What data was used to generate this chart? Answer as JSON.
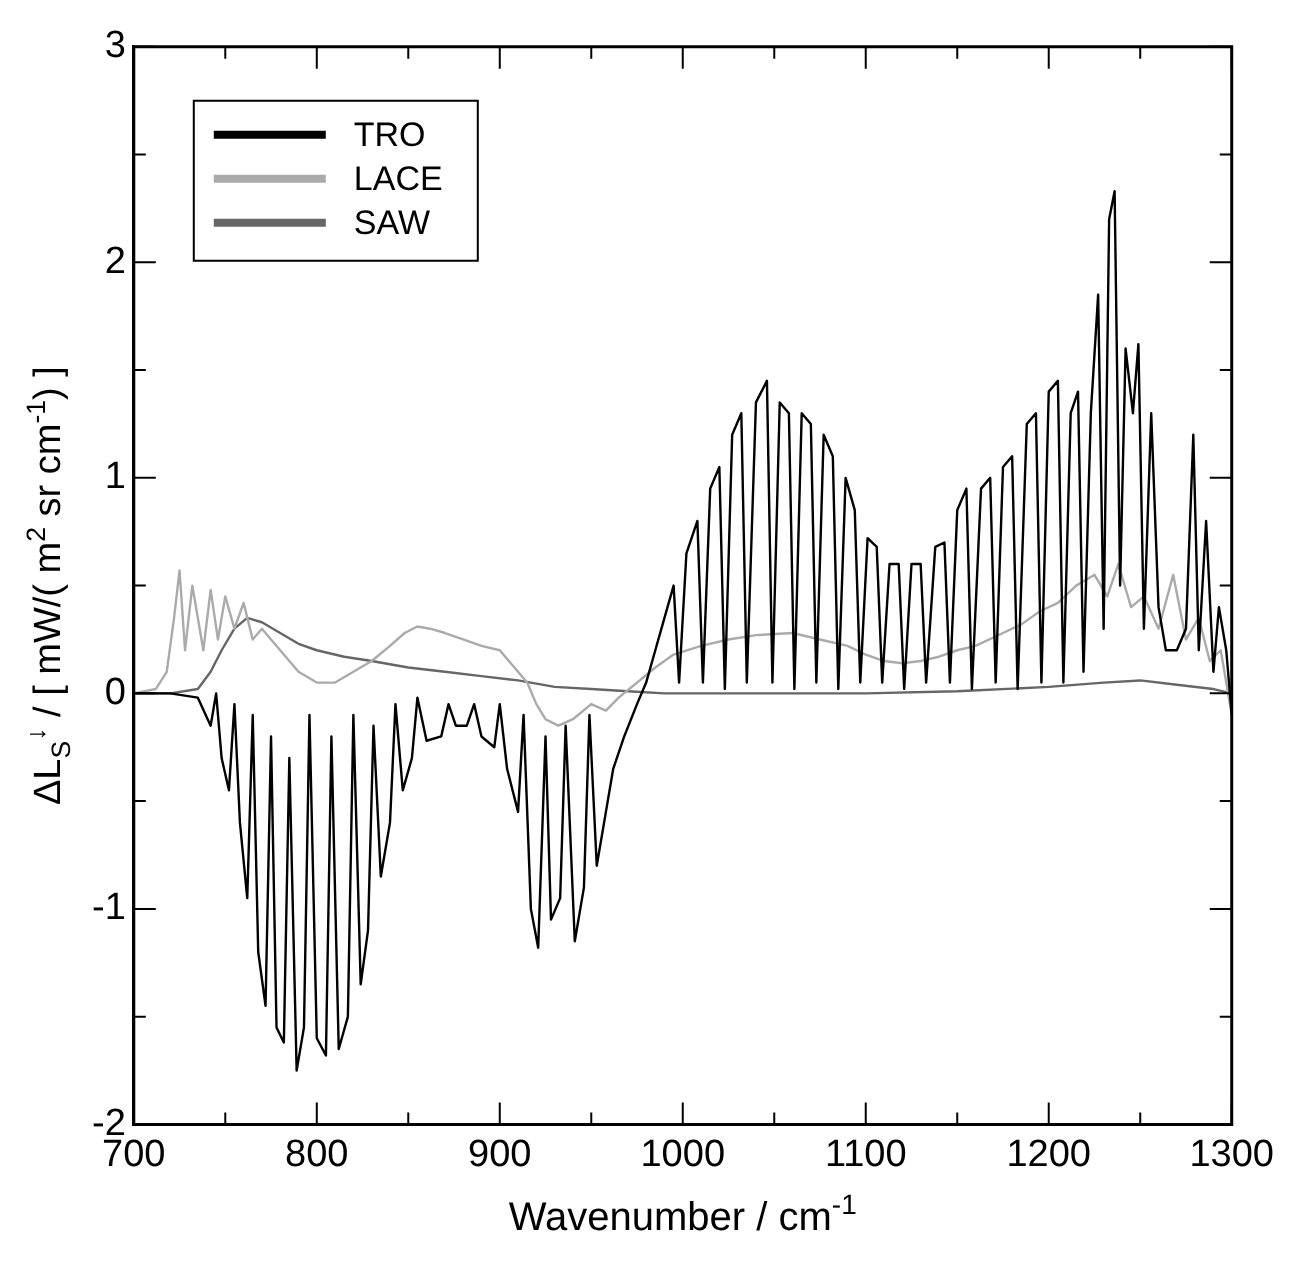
{
  "chart_data": {
    "type": "line",
    "xlabel": "Wavenumber / cm$^{-1}$",
    "ylabel": "ΔL$_{S}$$^{↓}$ / [ mW/( m$^{2}$ sr cm$^{-1}$) ]",
    "xlim": [
      700,
      1300
    ],
    "ylim": [
      -2,
      3
    ],
    "xticks": [
      700,
      {
        "value": 750,
        "label": null
      },
      800,
      {
        "value": 850,
        "label": null
      },
      900,
      {
        "value": 950,
        "label": null
      },
      1000,
      {
        "value": 1050,
        "label": null
      },
      1100,
      {
        "value": 1150,
        "label": null
      },
      1200,
      {
        "value": 1250,
        "label": null
      },
      1300
    ],
    "yticks": [
      -2,
      {
        "value": -1.5,
        "label": null
      },
      -1,
      {
        "value": -0.5,
        "label": null
      },
      0,
      {
        "value": 0.5,
        "label": null
      },
      1,
      {
        "value": 1.5,
        "label": null
      },
      2,
      {
        "value": 2.5,
        "label": null
      },
      3
    ],
    "grid": false,
    "legend": "top left",
    "marker": "none",
    "line_style": "solid",
    "series": [
      {
        "name": "TRO",
        "color": "#000000",
        "x": [
          700,
          720,
          735,
          742,
          745,
          748,
          752,
          755,
          758,
          762,
          765,
          768,
          772,
          775,
          778,
          782,
          785,
          789,
          793,
          796,
          800,
          805,
          808,
          812,
          817,
          820,
          824,
          828,
          831,
          835,
          840,
          843,
          847,
          852,
          855,
          860,
          868,
          872,
          876,
          882,
          886,
          890,
          897,
          900,
          904,
          910,
          913,
          917,
          921,
          925,
          928,
          933,
          936,
          941,
          946,
          949,
          953,
          958,
          962,
          968,
          975,
          980,
          985,
          990,
          995,
          998,
          1002,
          1008,
          1011,
          1015,
          1020,
          1023,
          1027,
          1032,
          1035,
          1040,
          1046,
          1049,
          1053,
          1058,
          1061,
          1065,
          1070,
          1073,
          1077,
          1082,
          1085,
          1089,
          1094,
          1097,
          1101,
          1106,
          1109,
          1113,
          1118,
          1121,
          1125,
          1130,
          1133,
          1138,
          1143,
          1146,
          1150,
          1155,
          1158,
          1163,
          1168,
          1171,
          1175,
          1180,
          1183,
          1188,
          1193,
          1196,
          1200,
          1205,
          1208,
          1212,
          1216,
          1219,
          1223,
          1227,
          1230,
          1233,
          1236,
          1239,
          1242,
          1246,
          1249,
          1252,
          1256,
          1260,
          1264,
          1270,
          1275,
          1279,
          1282,
          1286,
          1290,
          1293,
          1297,
          1300
        ],
        "values": [
          0,
          0,
          -0.02,
          -0.15,
          0,
          -0.3,
          -0.45,
          -0.05,
          -0.6,
          -0.95,
          -0.1,
          -1.2,
          -1.45,
          -0.2,
          -1.55,
          -1.62,
          -0.3,
          -1.75,
          -1.55,
          -0.1,
          -1.6,
          -1.68,
          -0.2,
          -1.65,
          -1.5,
          -0.1,
          -1.35,
          -1.1,
          -0.15,
          -0.85,
          -0.6,
          -0.05,
          -0.45,
          -0.3,
          -0.02,
          -0.22,
          -0.2,
          -0.05,
          -0.15,
          -0.15,
          -0.05,
          -0.2,
          -0.25,
          -0.05,
          -0.35,
          -0.55,
          -0.1,
          -1.0,
          -1.18,
          -0.2,
          -1.05,
          -0.95,
          -0.15,
          -1.15,
          -0.9,
          -0.1,
          -0.8,
          -0.55,
          -0.35,
          -0.2,
          -0.05,
          0.05,
          0.2,
          0.35,
          0.5,
          0.05,
          0.65,
          0.8,
          0.05,
          0.95,
          1.05,
          0.02,
          1.2,
          1.3,
          0.05,
          1.35,
          1.45,
          0.05,
          1.35,
          1.3,
          0.02,
          1.3,
          1.25,
          0.05,
          1.2,
          1.1,
          0.02,
          1.0,
          0.85,
          0.05,
          0.72,
          0.68,
          0.05,
          0.6,
          0.6,
          0.02,
          0.6,
          0.6,
          0.05,
          0.68,
          0.7,
          0.05,
          0.85,
          0.95,
          0.02,
          0.95,
          1.0,
          0.05,
          1.05,
          1.1,
          0.02,
          1.25,
          1.3,
          0.05,
          1.4,
          1.45,
          0.05,
          1.3,
          1.4,
          0.1,
          1.3,
          1.85,
          0.3,
          2.2,
          2.33,
          0.5,
          1.6,
          1.3,
          1.62,
          0.3,
          1.3,
          0.4,
          0.2,
          0.2,
          0.3,
          1.2,
          0.2,
          0.8,
          0.1,
          0.4,
          0.2,
          -0.1
        ]
      },
      {
        "name": "LACE",
        "color": "#aaaaaa",
        "x": [
          700,
          712,
          718,
          722,
          725,
          728,
          732,
          738,
          742,
          746,
          750,
          755,
          760,
          765,
          770,
          780,
          790,
          800,
          810,
          820,
          830,
          840,
          848,
          855,
          862,
          870,
          880,
          890,
          900,
          908,
          915,
          920,
          925,
          932,
          940,
          950,
          958,
          965,
          975,
          985,
          995,
          1010,
          1025,
          1040,
          1060,
          1075,
          1090,
          1100,
          1110,
          1120,
          1130,
          1140,
          1150,
          1160,
          1175,
          1185,
          1195,
          1205,
          1215,
          1225,
          1232,
          1238,
          1245,
          1252,
          1260,
          1268,
          1275,
          1282,
          1288,
          1294,
          1300
        ],
        "values": [
          0,
          0.02,
          0.1,
          0.35,
          0.57,
          0.2,
          0.5,
          0.2,
          0.48,
          0.25,
          0.45,
          0.3,
          0.42,
          0.25,
          0.3,
          0.2,
          0.1,
          0.05,
          0.05,
          0.1,
          0.15,
          0.22,
          0.28,
          0.31,
          0.3,
          0.28,
          0.25,
          0.22,
          0.2,
          0.12,
          0.05,
          -0.05,
          -0.12,
          -0.15,
          -0.12,
          -0.05,
          -0.08,
          -0.02,
          0.05,
          0.12,
          0.18,
          0.22,
          0.25,
          0.27,
          0.28,
          0.25,
          0.22,
          0.18,
          0.15,
          0.14,
          0.15,
          0.17,
          0.2,
          0.22,
          0.28,
          0.32,
          0.38,
          0.42,
          0.5,
          0.55,
          0.45,
          0.6,
          0.4,
          0.45,
          0.3,
          0.55,
          0.25,
          0.35,
          0.15,
          0.2,
          -0.1
        ]
      },
      {
        "name": "SAW",
        "color": "#666666",
        "x": [
          700,
          720,
          735,
          742,
          748,
          755,
          762,
          770,
          780,
          790,
          800,
          815,
          830,
          850,
          870,
          890,
          910,
          930,
          950,
          970,
          990,
          1020,
          1060,
          1100,
          1150,
          1200,
          1230,
          1250,
          1270,
          1290,
          1300
        ],
        "values": [
          0,
          0,
          0.02,
          0.1,
          0.2,
          0.3,
          0.35,
          0.33,
          0.28,
          0.23,
          0.2,
          0.17,
          0.15,
          0.12,
          0.1,
          0.08,
          0.06,
          0.03,
          0.02,
          0.01,
          0,
          0,
          0,
          0,
          0.01,
          0.03,
          0.05,
          0.06,
          0.04,
          0.02,
          0
        ]
      }
    ]
  }
}
